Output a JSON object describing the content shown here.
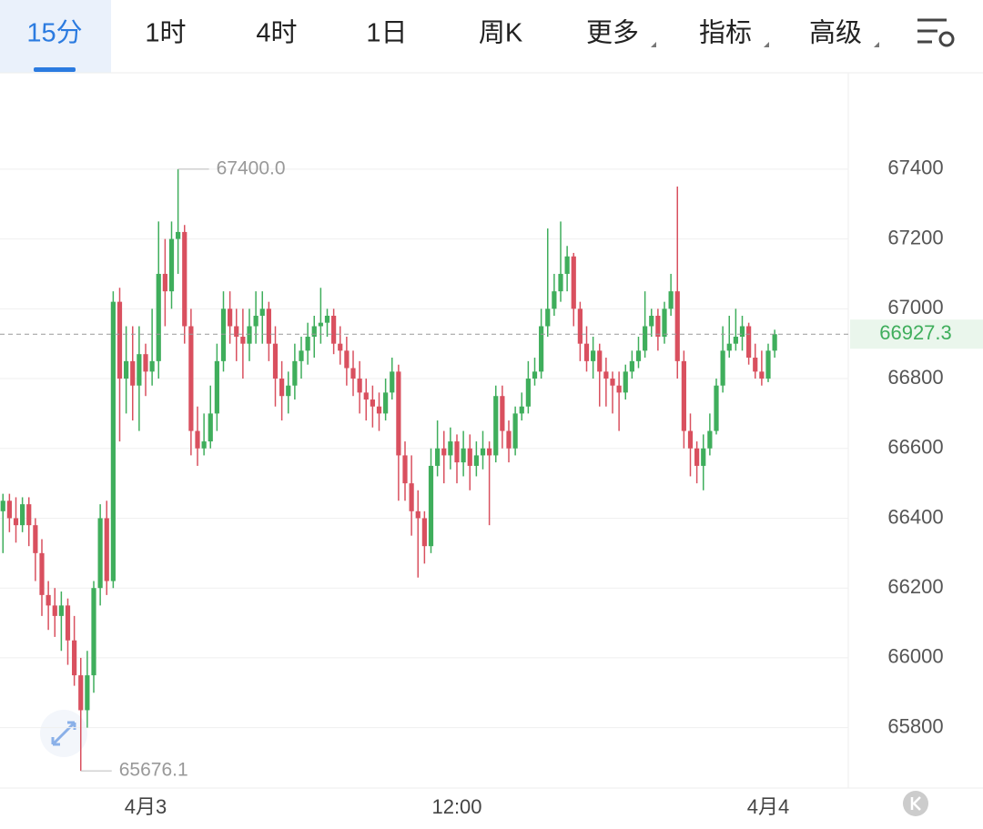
{
  "header": {
    "tabs": [
      "15分",
      "1时",
      "4时",
      "1日",
      "周K",
      "更多",
      "指标",
      "高级"
    ],
    "selected": 0
  },
  "chart_data": {
    "type": "candlestick",
    "up_color": "#3fae5c",
    "down_color": "#d9505f",
    "categories": [
      null,
      null,
      null,
      null,
      null,
      null,
      null,
      null,
      null,
      null,
      null,
      null,
      null,
      null,
      null,
      null,
      null,
      null,
      null,
      null,
      null,
      null,
      "4月3",
      null,
      null,
      null,
      null,
      null,
      null,
      null,
      null,
      null,
      null,
      null,
      null,
      null,
      null,
      null,
      null,
      null,
      null,
      null,
      null,
      null,
      null,
      null,
      null,
      null,
      null,
      null,
      null,
      null,
      null,
      null,
      null,
      null,
      null,
      null,
      null,
      null,
      null,
      null,
      null,
      null,
      null,
      null,
      null,
      null,
      null,
      null,
      "12:00",
      null,
      null,
      null,
      null,
      null,
      null,
      null,
      null,
      null,
      null,
      null,
      null,
      null,
      null,
      null,
      null,
      null,
      null,
      null,
      null,
      null,
      null,
      null,
      null,
      null,
      null,
      null,
      null,
      null,
      null,
      null,
      null,
      null,
      null,
      null,
      null,
      null,
      null,
      null,
      null,
      null,
      null,
      null,
      null,
      null,
      null,
      null,
      "4月4",
      null
    ],
    "ohlc": [
      [
        66420,
        66470,
        66300,
        66450
      ],
      [
        66450,
        66470,
        66360,
        66400
      ],
      [
        66400,
        66460,
        66330,
        66380
      ],
      [
        66380,
        66460,
        66360,
        66440
      ],
      [
        66440,
        66460,
        66320,
        66380
      ],
      [
        66380,
        66400,
        66220,
        66300
      ],
      [
        66300,
        66340,
        66120,
        66180
      ],
      [
        66180,
        66220,
        66080,
        66150
      ],
      [
        66150,
        66200,
        66060,
        66120
      ],
      [
        66120,
        66190,
        66020,
        66150
      ],
      [
        66150,
        66170,
        65980,
        66050
      ],
      [
        66050,
        66120,
        65920,
        65950
      ],
      [
        65950,
        66000,
        65676.1,
        65850
      ],
      [
        65850,
        66020,
        65800,
        65950
      ],
      [
        65950,
        66220,
        65900,
        66200
      ],
      [
        66200,
        66440,
        66150,
        66400
      ],
      [
        66400,
        66450,
        66180,
        66220
      ],
      [
        66220,
        67050,
        66200,
        67020
      ],
      [
        67020,
        67060,
        66620,
        66800
      ],
      [
        66800,
        66950,
        66700,
        66850
      ],
      [
        66850,
        66950,
        66680,
        66780
      ],
      [
        66780,
        66950,
        66650,
        66870
      ],
      [
        66870,
        66900,
        66750,
        66820
      ],
      [
        66820,
        67000,
        66780,
        66850
      ],
      [
        66850,
        67250,
        66800,
        67100
      ],
      [
        67100,
        67200,
        66950,
        67050
      ],
      [
        67050,
        67250,
        67000,
        67200
      ],
      [
        67200,
        67400,
        67100,
        67220
      ],
      [
        67220,
        67240,
        66900,
        66950
      ],
      [
        66950,
        67000,
        66580,
        66650
      ],
      [
        66650,
        66720,
        66550,
        66600
      ],
      [
        66600,
        66700,
        66580,
        66620
      ],
      [
        66620,
        66780,
        66600,
        66700
      ],
      [
        66700,
        66900,
        66650,
        66850
      ],
      [
        66850,
        67050,
        66820,
        67000
      ],
      [
        67000,
        67050,
        66900,
        66950
      ],
      [
        66950,
        67000,
        66850,
        66920
      ],
      [
        66920,
        67000,
        66800,
        66900
      ],
      [
        66900,
        67000,
        66850,
        66950
      ],
      [
        66950,
        67050,
        66900,
        66980
      ],
      [
        66980,
        67050,
        66900,
        67000
      ],
      [
        67000,
        67020,
        66850,
        66900
      ],
      [
        66900,
        66950,
        66720,
        66800
      ],
      [
        66800,
        66850,
        66680,
        66750
      ],
      [
        66750,
        66820,
        66700,
        66780
      ],
      [
        66780,
        66900,
        66740,
        66850
      ],
      [
        66850,
        66920,
        66800,
        66880
      ],
      [
        66880,
        66960,
        66840,
        66920
      ],
      [
        66920,
        66980,
        66860,
        66950
      ],
      [
        66950,
        67060,
        66900,
        66960
      ],
      [
        66960,
        67000,
        66920,
        66980
      ],
      [
        66980,
        67000,
        66870,
        66900
      ],
      [
        66900,
        66950,
        66840,
        66880
      ],
      [
        66880,
        66920,
        66780,
        66830
      ],
      [
        66830,
        66880,
        66750,
        66800
      ],
      [
        66800,
        66850,
        66700,
        66760
      ],
      [
        66760,
        66800,
        66680,
        66740
      ],
      [
        66740,
        66780,
        66660,
        66720
      ],
      [
        66720,
        66760,
        66650,
        66700
      ],
      [
        66700,
        66800,
        66680,
        66760
      ],
      [
        66760,
        66860,
        66740,
        66820
      ],
      [
        66820,
        66840,
        66450,
        66580
      ],
      [
        66580,
        66620,
        66450,
        66500
      ],
      [
        66500,
        66580,
        66350,
        66420
      ],
      [
        66420,
        66480,
        66230,
        66400
      ],
      [
        66400,
        66420,
        66270,
        66320
      ],
      [
        66320,
        66600,
        66300,
        66550
      ],
      [
        66550,
        66680,
        66520,
        66600
      ],
      [
        66600,
        66650,
        66500,
        66580
      ],
      [
        66580,
        66660,
        66540,
        66620
      ],
      [
        66620,
        66640,
        66500,
        66560
      ],
      [
        66560,
        66650,
        66520,
        66600
      ],
      [
        66600,
        66640,
        66480,
        66550
      ],
      [
        66550,
        66620,
        66520,
        66580
      ],
      [
        66580,
        66650,
        66540,
        66600
      ],
      [
        66600,
        66620,
        66380,
        66580
      ],
      [
        66580,
        66780,
        66560,
        66750
      ],
      [
        66750,
        66780,
        66600,
        66650
      ],
      [
        66650,
        66680,
        66560,
        66600
      ],
      [
        66600,
        66720,
        66580,
        66700
      ],
      [
        66700,
        66760,
        66680,
        66720
      ],
      [
        66720,
        66850,
        66700,
        66800
      ],
      [
        66800,
        66860,
        66780,
        66820
      ],
      [
        66820,
        67000,
        66800,
        66950
      ],
      [
        66950,
        67230,
        66920,
        67000
      ],
      [
        67000,
        67100,
        66980,
        67050
      ],
      [
        67050,
        67250,
        67020,
        67100
      ],
      [
        67100,
        67180,
        67050,
        67150
      ],
      [
        67150,
        67160,
        66950,
        67000
      ],
      [
        67000,
        67020,
        66850,
        66900
      ],
      [
        66900,
        66950,
        66820,
        66850
      ],
      [
        66850,
        66920,
        66800,
        66880
      ],
      [
        66880,
        66900,
        66720,
        66820
      ],
      [
        66820,
        66860,
        66720,
        66800
      ],
      [
        66800,
        66820,
        66700,
        66780
      ],
      [
        66780,
        66820,
        66650,
        66760
      ],
      [
        66760,
        66840,
        66740,
        66820
      ],
      [
        66820,
        66880,
        66800,
        66850
      ],
      [
        66850,
        66920,
        66830,
        66880
      ],
      [
        66880,
        67050,
        66860,
        66950
      ],
      [
        66950,
        67000,
        66920,
        66980
      ],
      [
        66980,
        67000,
        66880,
        66920
      ],
      [
        66920,
        67020,
        66900,
        67000
      ],
      [
        67000,
        67100,
        66980,
        67050
      ],
      [
        67050,
        67350,
        66800,
        66850
      ],
      [
        66850,
        66880,
        66600,
        66650
      ],
      [
        66650,
        66700,
        66520,
        66600
      ],
      [
        66600,
        66620,
        66500,
        66550
      ],
      [
        66550,
        66640,
        66480,
        66600
      ],
      [
        66600,
        66700,
        66580,
        66650
      ],
      [
        66650,
        66800,
        66640,
        66780
      ],
      [
        66780,
        66950,
        66760,
        66880
      ],
      [
        66880,
        66980,
        66860,
        66900
      ],
      [
        66900,
        67000,
        66880,
        66920
      ],
      [
        66920,
        66980,
        66880,
        66950
      ],
      [
        66950,
        66960,
        66840,
        66860
      ],
      [
        66860,
        66900,
        66800,
        66820
      ],
      [
        66820,
        66880,
        66780,
        66800
      ],
      [
        66800,
        66900,
        66790,
        66880
      ],
      [
        66880,
        66940,
        66860,
        66927.3
      ]
    ],
    "ylim": [
      65627,
      67676
    ],
    "yticks": [
      65800,
      66000,
      66200,
      66400,
      66600,
      66800,
      67000,
      67200,
      67400
    ],
    "grid": true,
    "high_label": {
      "value": 67400,
      "label": "67400.0"
    },
    "low_label": {
      "value": 65676.1,
      "label": "65676.1"
    },
    "last_price": 66927.3
  }
}
